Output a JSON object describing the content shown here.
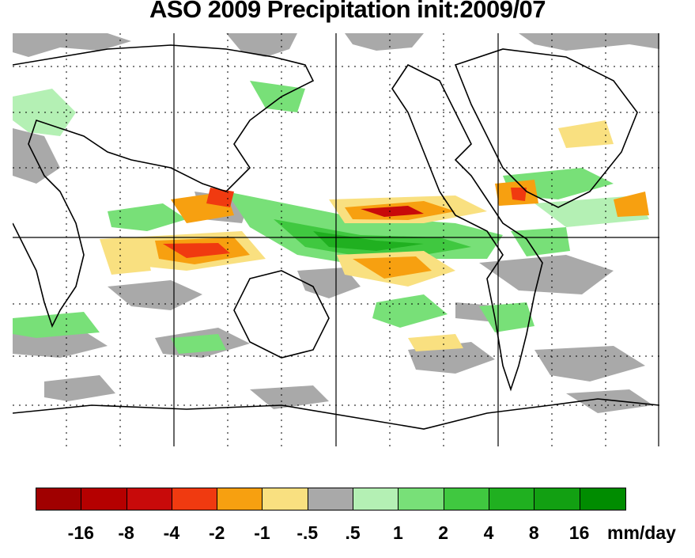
{
  "title": "ASO 2009 Precipitation init:2009/07",
  "colorbar": {
    "colors": [
      "#a00000",
      "#b50000",
      "#c80a0a",
      "#f03a10",
      "#f7a010",
      "#f9e080",
      "#a9a9a9",
      "#b4f0b4",
      "#78e078",
      "#40c840",
      "#20b020",
      "#12a012",
      "#008c00"
    ],
    "tick_labels": [
      "-16",
      "-8",
      "-4",
      "-2",
      "-1",
      "-.5",
      ".5",
      "1",
      "2",
      "4",
      "8",
      "16"
    ],
    "unit": "mm/day"
  },
  "map": {
    "projection": "equirectangular",
    "gridlines": "dotted",
    "longitude_lines": 12,
    "latitude_lines": 8
  }
}
